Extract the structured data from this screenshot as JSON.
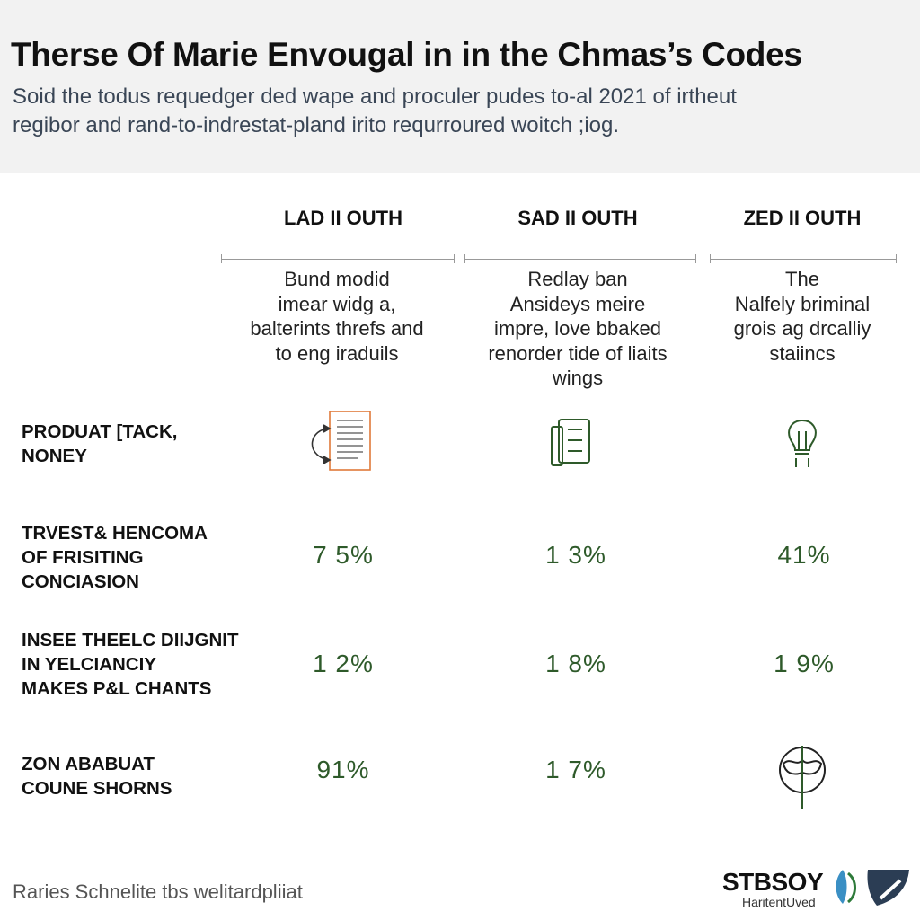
{
  "header": {
    "title": "Therse Of Marie Envougal in in the Chmas’s Codes",
    "subtitle_lines": [
      "Soid the todus requedger ded wape and proculer pudes to-al 2021 of irtheut",
      "regibor and rand-to-indrestat-pland irito requrroured woitch ;iog."
    ]
  },
  "table": {
    "columns": [
      {
        "title": "LAD II OUTH",
        "description_lines": [
          "Bund modid",
          "imear widg a,",
          "balterints threfs and",
          "to eng iraduils"
        ]
      },
      {
        "title": "SAD II OUTH",
        "description_lines": [
          "Redlay ban",
          "Ansideys meire",
          "impre, love bbaked",
          "renorder tide of liaits",
          "wings"
        ]
      },
      {
        "title": "ZED II OUTH",
        "description_lines": [
          "The",
          "Nalfely briminal",
          "grois ag drcalliy",
          "staiincs"
        ]
      }
    ],
    "rows": [
      {
        "label_lines": [
          "PRODUAT [TACK,",
          "NONEY"
        ]
      },
      {
        "label_lines": [
          "TRVEST& HENCOMA",
          "OF  FRISITING",
          "CONCIASION"
        ],
        "values": [
          "7 5%",
          "1 3%",
          "41%"
        ]
      },
      {
        "label_lines": [
          "INSEE THEELC DIIJGNIT",
          "IN YELCIANCIY",
          "MAKES P&L CHANTS"
        ],
        "values": [
          "1 2%",
          "1 8%",
          "1 9%"
        ]
      },
      {
        "label_lines": [
          "ZON ABABUAT",
          "COUNE SHORNS"
        ],
        "values": [
          "91%",
          "1 7%"
        ]
      }
    ]
  },
  "footer": {
    "text": "Raries Schnelite tbs welitardpliiat",
    "logo_name": "STBSOY",
    "logo_tagline": "HaritentUved"
  }
}
